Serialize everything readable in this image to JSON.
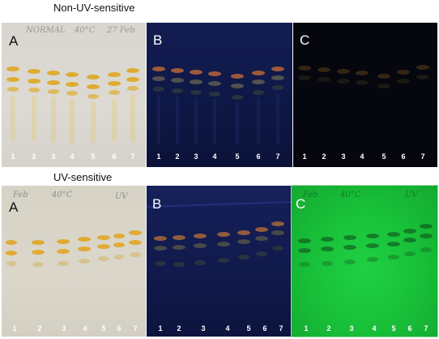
{
  "top_section": {
    "title": "Non-UV-sensitive",
    "handwriting": [
      "NORMAL",
      "40°C",
      "27 Feb"
    ]
  },
  "bottom_section": {
    "title": "UV-sensitive",
    "handwriting": [
      "Feb",
      "40°C",
      "UV"
    ]
  },
  "panel_letters": [
    "A",
    "B",
    "C"
  ],
  "lane_numbers": [
    "1",
    "2",
    "3",
    "4",
    "5",
    "6",
    "7"
  ],
  "panel_colors": {
    "white_light": "#dcd9d0",
    "uv_long_wave": "#0f1a4a",
    "uv_dark": "#05060f",
    "uv_fluorescent": "#19c23a"
  }
}
